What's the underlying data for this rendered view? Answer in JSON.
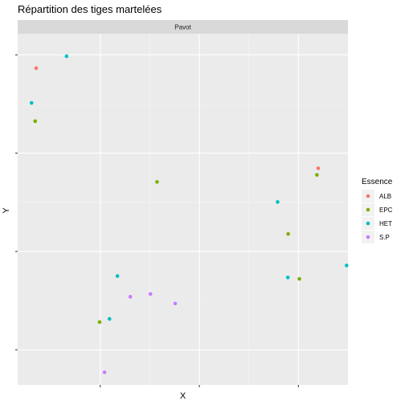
{
  "chart_data": {
    "type": "scatter",
    "title": "Répartition des tiges martelées",
    "facet": "Pavot",
    "xlabel": "X",
    "ylabel": "Y",
    "xlim": [
      0,
      100
    ],
    "ylim": [
      0,
      100
    ],
    "x_gridlines": [
      25,
      55,
      85
    ],
    "y_gridlines": [
      10,
      38,
      66,
      94
    ],
    "legend": {
      "title": "Essence",
      "position": "right",
      "entries": [
        {
          "label": "ALB",
          "color": "#F8766D"
        },
        {
          "label": "EPC",
          "color": "#7CAE00"
        },
        {
          "label": "HET",
          "color": "#00BFC4"
        },
        {
          "label": "S.P",
          "color": "#C77CFF"
        }
      ]
    },
    "series": [
      {
        "name": "ALB",
        "color": "#F8766D",
        "points": [
          {
            "x": 5.6,
            "y": 90.2
          },
          {
            "x": 91.0,
            "y": 61.7
          }
        ]
      },
      {
        "name": "EPC",
        "color": "#7CAE00",
        "points": [
          {
            "x": 5.3,
            "y": 75.1
          },
          {
            "x": 42.2,
            "y": 57.8
          },
          {
            "x": 90.6,
            "y": 59.8
          },
          {
            "x": 81.9,
            "y": 43.0
          },
          {
            "x": 85.3,
            "y": 30.2
          },
          {
            "x": 24.8,
            "y": 17.9
          }
        ]
      },
      {
        "name": "HET",
        "color": "#00BFC4",
        "points": [
          {
            "x": 14.8,
            "y": 93.6
          },
          {
            "x": 4.2,
            "y": 80.3
          },
          {
            "x": 78.7,
            "y": 52.1
          },
          {
            "x": 30.2,
            "y": 31.0
          },
          {
            "x": 81.8,
            "y": 30.6
          },
          {
            "x": 99.6,
            "y": 34.0
          },
          {
            "x": 27.8,
            "y": 18.8
          }
        ]
      },
      {
        "name": "S.P",
        "color": "#C77CFF",
        "points": [
          {
            "x": 34.1,
            "y": 25.1
          },
          {
            "x": 40.2,
            "y": 25.9
          },
          {
            "x": 47.7,
            "y": 23.2
          },
          {
            "x": 26.3,
            "y": 3.6
          }
        ]
      }
    ]
  }
}
